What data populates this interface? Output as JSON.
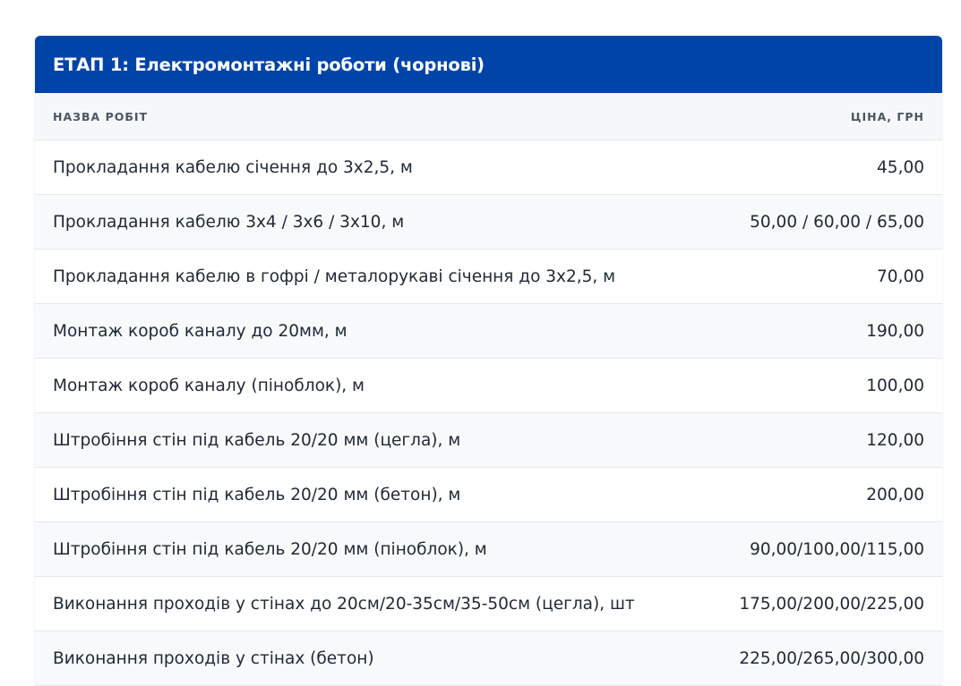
{
  "section": {
    "title": "ЕТАП 1: Електромонтажні роботи (чорнові)"
  },
  "table": {
    "columns": {
      "name": "НАЗВА РОБІТ",
      "price": "ЦІНА, ГРН"
    },
    "rows": [
      {
        "name": "Прокладання кабелю січення до 3х2,5, м",
        "price": "45,00"
      },
      {
        "name": "Прокладання кабелю 3х4 / 3х6 / 3х10, м",
        "price": "50,00 / 60,00 / 65,00"
      },
      {
        "name": "Прокладання кабелю в гофрі / металорукаві січення до 3х2,5, м",
        "price": "70,00"
      },
      {
        "name": "Монтаж короб каналу до 20мм, м",
        "price": "190,00"
      },
      {
        "name": "Монтаж короб каналу (піноблок), м",
        "price": "100,00"
      },
      {
        "name": "Штробіння стін під кабель 20/20 мм (цегла), м",
        "price": "120,00"
      },
      {
        "name": "Штробіння стін під кабель 20/20 мм (бетон), м",
        "price": "200,00"
      },
      {
        "name": "Штробіння стін під кабель 20/20 мм (піноблок), м",
        "price": "90,00/100,00/115,00"
      },
      {
        "name": "Виконання проходів у стінах до 20см/20-35см/35-50см (цегла), шт",
        "price": "175,00/200,00/225,00"
      },
      {
        "name": "Виконання проходів у стінах (бетон)",
        "price": "225,00/265,00/300,00"
      }
    ]
  }
}
